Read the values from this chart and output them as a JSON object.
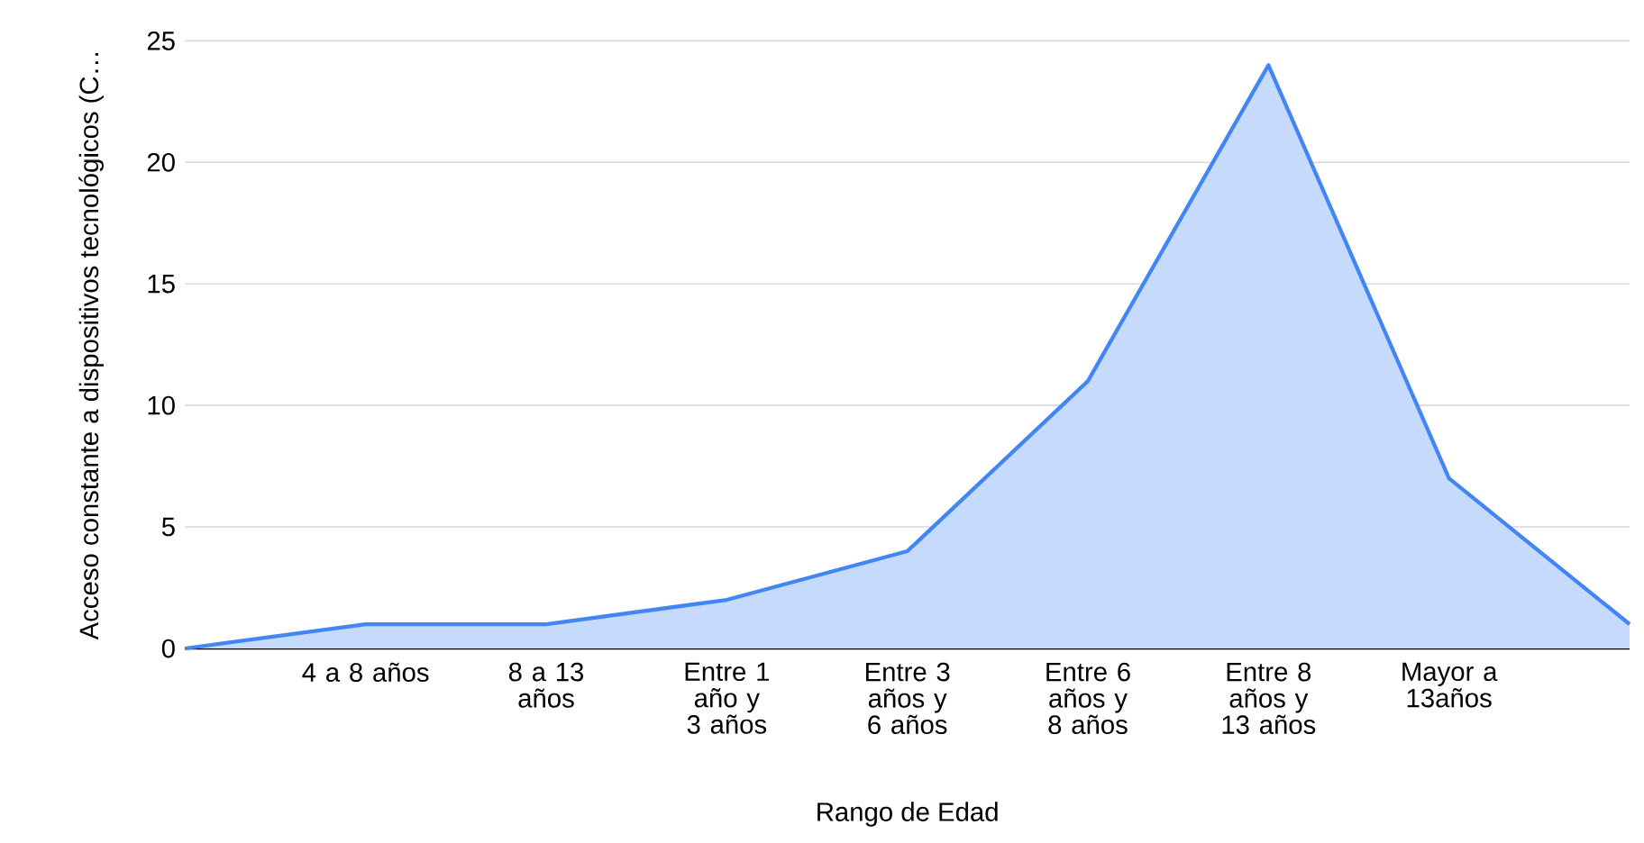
{
  "chart_data": {
    "type": "area",
    "xlabel": "Rango de Edad",
    "ylabel": "Acceso constante a dispositivos tecnológicos (C…",
    "categories": [
      null,
      "4 a 8 años",
      "8 a 13 años",
      "Entre 1 año y 3 años",
      "Entre 3 años y 6 años",
      "Entre 6 años y 8 años",
      "Entre 8 años y 13 años",
      "Mayor a 13años",
      null
    ],
    "series": [
      {
        "color": "#4285f4",
        "values": [
          0,
          1,
          1,
          2,
          4,
          11,
          24,
          7,
          1
        ]
      }
    ],
    "ylim": [
      0,
      25
    ],
    "yticks": [
      0,
      5,
      10,
      15,
      20,
      25
    ],
    "grid": "y"
  }
}
